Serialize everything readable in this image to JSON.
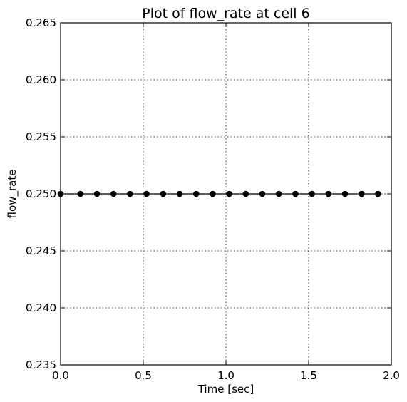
{
  "chart_data": {
    "type": "line",
    "title": "Plot of flow_rate at cell 6",
    "xlabel": "Time [sec]",
    "ylabel": "flow_rate",
    "xlim": [
      0.0,
      2.0
    ],
    "ylim": [
      0.235,
      0.265
    ],
    "xticks": [
      "0.0",
      "0.5",
      "1.0",
      "1.5",
      "2.0"
    ],
    "xtick_values": [
      0.0,
      0.5,
      1.0,
      1.5,
      2.0
    ],
    "yticks": [
      "0.235",
      "0.240",
      "0.245",
      "0.250",
      "0.255",
      "0.260",
      "0.265"
    ],
    "ytick_values": [
      0.235,
      0.24,
      0.245,
      0.25,
      0.255,
      0.26,
      0.265
    ],
    "grid": true,
    "series": [
      {
        "color": "#000000",
        "marker": "circle",
        "x": [
          0.0,
          0.12,
          0.22,
          0.32,
          0.42,
          0.52,
          0.62,
          0.72,
          0.82,
          0.92,
          1.02,
          1.12,
          1.22,
          1.32,
          1.42,
          1.52,
          1.62,
          1.72,
          1.82,
          1.92
        ],
        "y": [
          0.25,
          0.25,
          0.25,
          0.25,
          0.25,
          0.25,
          0.25,
          0.25,
          0.25,
          0.25,
          0.25,
          0.25,
          0.25,
          0.25,
          0.25,
          0.25,
          0.25,
          0.25,
          0.25,
          0.25
        ]
      }
    ]
  }
}
